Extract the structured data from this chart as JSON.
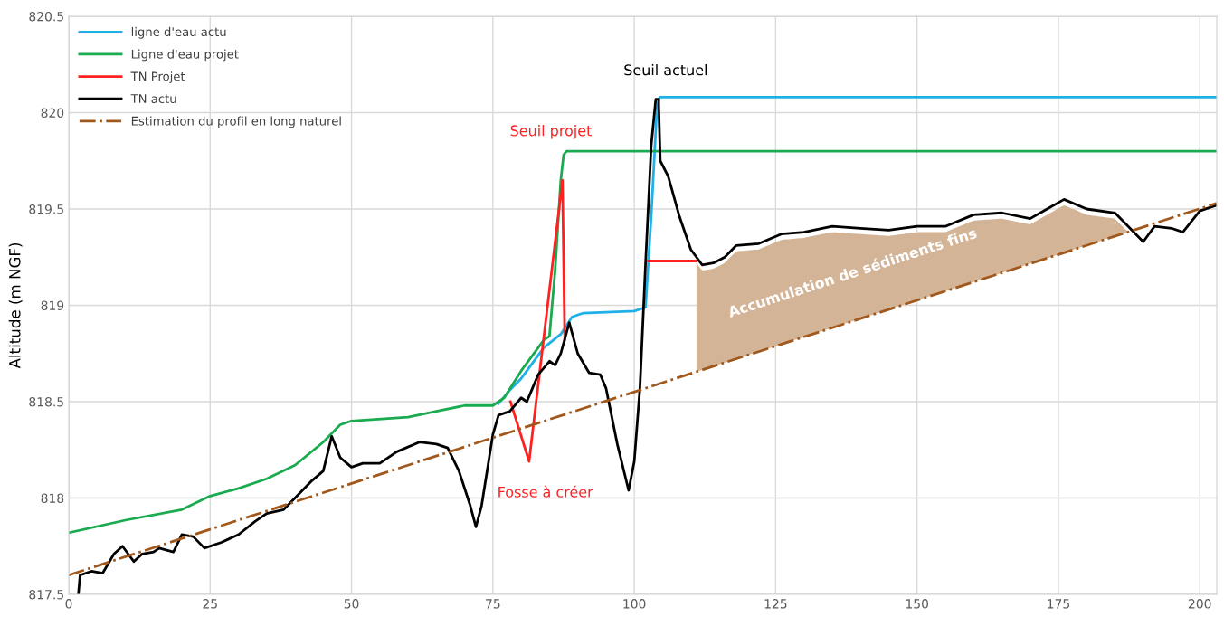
{
  "chart_data": {
    "type": "line",
    "ylabel": "Altitude (m NGF)",
    "xlim": [
      0,
      203
    ],
    "xticks": [
      0,
      25,
      50,
      75,
      100,
      125,
      150,
      175,
      200
    ],
    "ylim": [
      817.5,
      820.5
    ],
    "yticks": [
      817.5,
      818,
      818.5,
      819,
      819.5,
      820,
      820.5
    ],
    "grid": true,
    "legend": "top left",
    "series": [
      {
        "name": "ligne d'eau actu",
        "color": "#1fb0e8",
        "x": [
          76,
          78,
          80,
          84,
          87,
          89,
          91,
          100,
          102,
          103,
          104,
          104.5,
          203
        ],
        "values": [
          818.49,
          818.56,
          818.62,
          818.78,
          818.85,
          818.94,
          818.96,
          818.97,
          818.99,
          819.46,
          820.02,
          820.08,
          820.08
        ]
      },
      {
        "name": "Ligne d'eau projet",
        "color": "#1aaa50",
        "x": [
          0,
          10,
          20,
          25,
          30,
          35,
          40,
          45,
          48,
          50,
          60,
          65,
          70,
          75,
          77,
          80,
          84,
          85,
          86,
          87,
          87.5,
          88,
          203
        ],
        "values": [
          817.82,
          817.885,
          817.94,
          818.01,
          818.05,
          818.1,
          818.17,
          818.29,
          818.38,
          818.4,
          818.42,
          818.45,
          818.48,
          818.48,
          818.52,
          818.66,
          818.82,
          818.84,
          819.18,
          819.65,
          819.78,
          819.8,
          819.8
        ]
      },
      {
        "name": "TN Projet",
        "color": "#ff2020",
        "x": [
          78.1,
          81.4,
          87.3,
          87.7,
          95,
          102.5,
          111
        ],
        "values": [
          818.5,
          818.19,
          819.65,
          818.82,
          null,
          819.23,
          819.23
        ]
      },
      {
        "name": "TN actu",
        "color": "#000000",
        "x": [
          1.7,
          2,
          4,
          6,
          8,
          9.5,
          11.5,
          13,
          15,
          16,
          18.5,
          20,
          22,
          24,
          27,
          30,
          33,
          35,
          38,
          40,
          43,
          45,
          46.5,
          48,
          50,
          52,
          55,
          58,
          62,
          65,
          67,
          69,
          71,
          72,
          73,
          75,
          76,
          78,
          80,
          81,
          82,
          83,
          85,
          86,
          87,
          88.5,
          90,
          92,
          94,
          95,
          97,
          99,
          100,
          101,
          102,
          103,
          103.8,
          104.3,
          104.6,
          106,
          108,
          110,
          112,
          114,
          116,
          118,
          122,
          126,
          130,
          135,
          140,
          145,
          150,
          155,
          160,
          165,
          170,
          173,
          176,
          180,
          185,
          190,
          192,
          195,
          197,
          200,
          203
        ],
        "values": [
          817.5,
          817.6,
          817.62,
          817.61,
          817.71,
          817.75,
          817.67,
          817.71,
          817.72,
          817.74,
          817.72,
          817.81,
          817.8,
          817.74,
          817.77,
          817.81,
          817.88,
          817.92,
          817.94,
          818.0,
          818.09,
          818.14,
          818.32,
          818.21,
          818.16,
          818.18,
          818.18,
          818.24,
          818.29,
          818.28,
          818.26,
          818.14,
          817.96,
          817.85,
          817.96,
          818.33,
          818.43,
          818.45,
          818.52,
          818.5,
          818.57,
          818.64,
          818.71,
          818.69,
          818.75,
          818.91,
          818.75,
          818.65,
          818.64,
          818.57,
          818.28,
          818.04,
          818.19,
          818.57,
          819.22,
          819.83,
          820.07,
          820.07,
          819.75,
          819.67,
          819.46,
          819.29,
          819.21,
          819.22,
          819.25,
          819.31,
          819.32,
          819.37,
          819.38,
          819.41,
          819.4,
          819.39,
          819.41,
          819.41,
          819.47,
          819.48,
          819.45,
          819.5,
          819.55,
          819.5,
          819.48,
          819.33,
          819.41,
          819.4,
          819.38,
          819.49,
          819.52
        ]
      },
      {
        "name": "Estimation du profil en long naturel",
        "color": "#a0581c",
        "line_style": "dashdot",
        "x": [
          0,
          203
        ],
        "values": [
          817.6,
          819.53
        ]
      }
    ],
    "annotations": [
      "Seuil actuel",
      "Seuil projet",
      "Fosse à créer",
      "Accumulation de sédiments fins"
    ]
  }
}
